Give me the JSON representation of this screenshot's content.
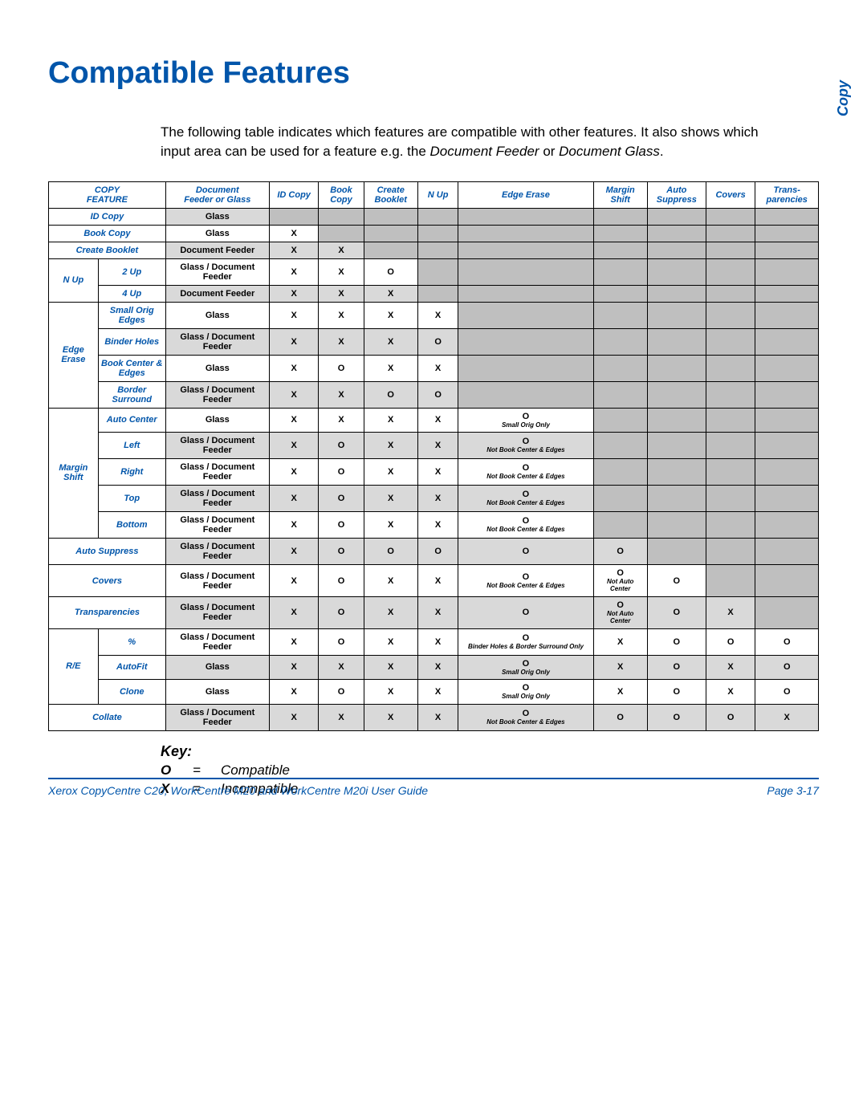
{
  "sideLabel": "Copy",
  "title": "Compatible Features",
  "intro": "The following table indicates which features are compatible with other features. It also shows which input area can be used for a feature e.g. the <i>Document Feeder</i> or <i>Document Glass</i>.",
  "colors": {
    "accent": "#0055aa",
    "shadeLight": "#d9d9d9",
    "shadeDark": "#bfbfbf"
  },
  "headers": [
    "COPY<br>FEATURE",
    "Document<br>Feeder or Glass",
    "ID Copy",
    "Book<br>Copy",
    "Create<br>Booklet",
    "N Up",
    "Edge Erase",
    "Margin<br>Shift",
    "Auto<br>Suppress",
    "Covers",
    "Trans-<br>parencies"
  ],
  "rows": [
    {
      "group": "ID Copy",
      "groupSpan": 1,
      "sub": null,
      "src": "Glass",
      "shade": true,
      "cells": [
        {
          "g": 1
        },
        {
          "g": 1
        },
        {
          "g": 1
        },
        {
          "g": 1
        },
        {
          "g": 1
        },
        {
          "g": 1
        },
        {
          "g": 1
        },
        {
          "g": 1
        },
        {
          "g": 1
        }
      ]
    },
    {
      "group": "Book Copy",
      "groupSpan": 1,
      "sub": null,
      "src": "Glass",
      "shade": false,
      "cells": [
        {
          "t": "X"
        },
        {
          "g": 1
        },
        {
          "g": 1
        },
        {
          "g": 1
        },
        {
          "g": 1
        },
        {
          "g": 1
        },
        {
          "g": 1
        },
        {
          "g": 1
        },
        {
          "g": 1
        }
      ]
    },
    {
      "group": "Create Booklet",
      "groupSpan": 1,
      "sub": null,
      "src": "Document Feeder",
      "shade": true,
      "cells": [
        {
          "t": "X"
        },
        {
          "t": "X"
        },
        {
          "g": 1
        },
        {
          "g": 1
        },
        {
          "g": 1
        },
        {
          "g": 1
        },
        {
          "g": 1
        },
        {
          "g": 1
        },
        {
          "g": 1
        }
      ]
    },
    {
      "group": "N Up",
      "groupSpan": 2,
      "sub": "2 Up",
      "src": "Glass / Document Feeder",
      "shade": false,
      "cells": [
        {
          "t": "X"
        },
        {
          "t": "X"
        },
        {
          "t": "O"
        },
        {
          "g": 1
        },
        {
          "g": 1
        },
        {
          "g": 1
        },
        {
          "g": 1
        },
        {
          "g": 1
        },
        {
          "g": 1
        }
      ]
    },
    {
      "group": null,
      "sub": "4 Up",
      "src": "Document Feeder",
      "shade": true,
      "cells": [
        {
          "t": "X"
        },
        {
          "t": "X"
        },
        {
          "t": "X"
        },
        {
          "g": 1
        },
        {
          "g": 1
        },
        {
          "g": 1
        },
        {
          "g": 1
        },
        {
          "g": 1
        },
        {
          "g": 1
        }
      ]
    },
    {
      "group": "Edge Erase",
      "groupSpan": 4,
      "sub": "Small Orig Edges",
      "src": "Glass",
      "shade": false,
      "cells": [
        {
          "t": "X"
        },
        {
          "t": "X"
        },
        {
          "t": "X"
        },
        {
          "t": "X"
        },
        {
          "g": 1
        },
        {
          "g": 1
        },
        {
          "g": 1
        },
        {
          "g": 1
        },
        {
          "g": 1
        }
      ]
    },
    {
      "group": null,
      "sub": "Binder Holes",
      "src": "Glass / Document Feeder",
      "shade": true,
      "cells": [
        {
          "t": "X"
        },
        {
          "t": "X"
        },
        {
          "t": "X"
        },
        {
          "t": "O"
        },
        {
          "g": 1
        },
        {
          "g": 1
        },
        {
          "g": 1
        },
        {
          "g": 1
        },
        {
          "g": 1
        }
      ]
    },
    {
      "group": null,
      "sub": "Book Center & Edges",
      "src": "Glass",
      "shade": false,
      "cells": [
        {
          "t": "X"
        },
        {
          "t": "O"
        },
        {
          "t": "X"
        },
        {
          "t": "X"
        },
        {
          "g": 1
        },
        {
          "g": 1
        },
        {
          "g": 1
        },
        {
          "g": 1
        },
        {
          "g": 1
        }
      ]
    },
    {
      "group": null,
      "sub": "Border Surround",
      "src": "Glass / Document Feeder",
      "shade": true,
      "cells": [
        {
          "t": "X"
        },
        {
          "t": "X"
        },
        {
          "t": "O"
        },
        {
          "t": "O"
        },
        {
          "g": 1
        },
        {
          "g": 1
        },
        {
          "g": 1
        },
        {
          "g": 1
        },
        {
          "g": 1
        }
      ]
    },
    {
      "group": "Margin Shift",
      "groupSpan": 5,
      "sub": "Auto Center",
      "src": "Glass",
      "shade": false,
      "cells": [
        {
          "t": "X"
        },
        {
          "t": "X"
        },
        {
          "t": "X"
        },
        {
          "t": "X"
        },
        {
          "t": "O",
          "n": "Small Orig Only"
        },
        {
          "g": 1
        },
        {
          "g": 1
        },
        {
          "g": 1
        },
        {
          "g": 1
        }
      ]
    },
    {
      "group": null,
      "sub": "Left",
      "src": "Glass / Document Feeder",
      "shade": true,
      "cells": [
        {
          "t": "X"
        },
        {
          "t": "O"
        },
        {
          "t": "X"
        },
        {
          "t": "X"
        },
        {
          "t": "O",
          "n": "Not Book Center & Edges"
        },
        {
          "g": 1
        },
        {
          "g": 1
        },
        {
          "g": 1
        },
        {
          "g": 1
        }
      ]
    },
    {
      "group": null,
      "sub": "Right",
      "src": "Glass / Document Feeder",
      "shade": false,
      "cells": [
        {
          "t": "X"
        },
        {
          "t": "O"
        },
        {
          "t": "X"
        },
        {
          "t": "X"
        },
        {
          "t": "O",
          "n": "Not Book Center & Edges"
        },
        {
          "g": 1
        },
        {
          "g": 1
        },
        {
          "g": 1
        },
        {
          "g": 1
        }
      ]
    },
    {
      "group": null,
      "sub": "Top",
      "src": "Glass / Document Feeder",
      "shade": true,
      "cells": [
        {
          "t": "X"
        },
        {
          "t": "O"
        },
        {
          "t": "X"
        },
        {
          "t": "X"
        },
        {
          "t": "O",
          "n": "Not Book Center & Edges"
        },
        {
          "g": 1
        },
        {
          "g": 1
        },
        {
          "g": 1
        },
        {
          "g": 1
        }
      ]
    },
    {
      "group": null,
      "sub": "Bottom",
      "src": "Glass / Document Feeder",
      "shade": false,
      "cells": [
        {
          "t": "X"
        },
        {
          "t": "O"
        },
        {
          "t": "X"
        },
        {
          "t": "X"
        },
        {
          "t": "O",
          "n": "Not Book Center & Edges"
        },
        {
          "g": 1
        },
        {
          "g": 1
        },
        {
          "g": 1
        },
        {
          "g": 1
        }
      ]
    },
    {
      "group": "Auto Suppress",
      "groupSpan": 1,
      "sub": null,
      "src": "Glass / Document Feeder",
      "shade": true,
      "cells": [
        {
          "t": "X"
        },
        {
          "t": "O"
        },
        {
          "t": "O"
        },
        {
          "t": "O"
        },
        {
          "t": "O"
        },
        {
          "t": "O"
        },
        {
          "g": 1
        },
        {
          "g": 1
        },
        {
          "g": 1
        }
      ]
    },
    {
      "group": "Covers",
      "groupSpan": 1,
      "sub": null,
      "src": "Glass / Document Feeder",
      "shade": false,
      "cells": [
        {
          "t": "X"
        },
        {
          "t": "O"
        },
        {
          "t": "X"
        },
        {
          "t": "X"
        },
        {
          "t": "O",
          "n": "Not Book Center & Edges"
        },
        {
          "t": "O",
          "n": "Not Auto Center"
        },
        {
          "t": "O"
        },
        {
          "g": 1
        },
        {
          "g": 1
        }
      ]
    },
    {
      "group": "Transparencies",
      "groupSpan": 1,
      "sub": null,
      "src": "Glass / Document Feeder",
      "shade": true,
      "cells": [
        {
          "t": "X"
        },
        {
          "t": "O"
        },
        {
          "t": "X"
        },
        {
          "t": "X"
        },
        {
          "t": "O"
        },
        {
          "t": "O",
          "n": "Not Auto Center"
        },
        {
          "t": "O"
        },
        {
          "t": "X"
        },
        {
          "g": 1
        }
      ]
    },
    {
      "group": "R/E",
      "groupSpan": 3,
      "sub": "%",
      "src": "Glass / Document Feeder",
      "shade": false,
      "cells": [
        {
          "t": "X"
        },
        {
          "t": "O"
        },
        {
          "t": "X"
        },
        {
          "t": "X"
        },
        {
          "t": "O",
          "n": "Binder Holes & Border Surround Only"
        },
        {
          "t": "X"
        },
        {
          "t": "O"
        },
        {
          "t": "O"
        },
        {
          "t": "O"
        }
      ]
    },
    {
      "group": null,
      "sub": "AutoFit",
      "src": "Glass",
      "shade": true,
      "cells": [
        {
          "t": "X"
        },
        {
          "t": "X"
        },
        {
          "t": "X"
        },
        {
          "t": "X"
        },
        {
          "t": "O",
          "n": "Small Orig Only"
        },
        {
          "t": "X"
        },
        {
          "t": "O"
        },
        {
          "t": "X"
        },
        {
          "t": "O"
        }
      ]
    },
    {
      "group": null,
      "sub": "Clone",
      "src": "Glass",
      "shade": false,
      "cells": [
        {
          "t": "X"
        },
        {
          "t": "O"
        },
        {
          "t": "X"
        },
        {
          "t": "X"
        },
        {
          "t": "O",
          "n": "Small Orig Only"
        },
        {
          "t": "X"
        },
        {
          "t": "O"
        },
        {
          "t": "X"
        },
        {
          "t": "O"
        }
      ]
    },
    {
      "group": "Collate",
      "groupSpan": 1,
      "sub": null,
      "src": "Glass / Document Feeder",
      "shade": true,
      "cells": [
        {
          "t": "X"
        },
        {
          "t": "X"
        },
        {
          "t": "X"
        },
        {
          "t": "X"
        },
        {
          "t": "O",
          "n": "Not Book Center & Edges"
        },
        {
          "t": "O"
        },
        {
          "t": "O"
        },
        {
          "t": "O"
        },
        {
          "t": "X"
        }
      ]
    }
  ],
  "key": {
    "title": "Key:",
    "items": [
      {
        "sym": "O",
        "eq": "=",
        "text": "Compatible"
      },
      {
        "sym": "X",
        "eq": "=",
        "text": "Incompatible"
      }
    ]
  },
  "footer": {
    "left": "Xerox CopyCentre C20, WorkCentre M20 and WorkCentre M20i User Guide",
    "right": "Page 3-17"
  }
}
